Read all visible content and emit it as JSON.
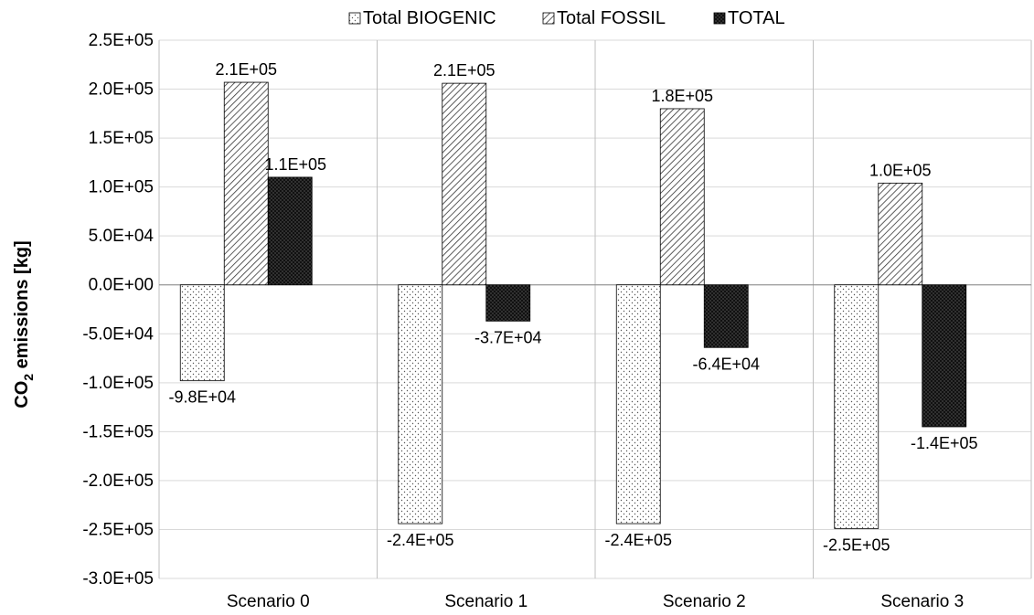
{
  "chart_data": {
    "type": "bar",
    "categories": [
      "Scenario 0",
      "Scenario 1",
      "Scenario 2",
      "Scenario 3"
    ],
    "series": [
      {
        "name": "Total BIOGENIC",
        "values": [
          -98000,
          -244000,
          -244000,
          -249000
        ],
        "labels": [
          "-9.8E+04",
          "-2.4E+05",
          "-2.4E+05",
          "-2.5E+05"
        ],
        "pattern": "dots"
      },
      {
        "name": "Total FOSSIL",
        "values": [
          207000,
          206000,
          180000,
          104000
        ],
        "labels": [
          "2.1E+05",
          "2.1E+05",
          "1.8E+05",
          "1.0E+05"
        ],
        "pattern": "diagonal-hatch"
      },
      {
        "name": "TOTAL",
        "values": [
          110000,
          -37000,
          -64000,
          -145000
        ],
        "labels": [
          "1.1E+05",
          "-3.7E+04",
          "-6.4E+04",
          "-1.4E+05"
        ],
        "pattern": "dense-dots"
      }
    ],
    "ylabel_main": "CO",
    "ylabel_sub": "2",
    "ylabel_rest": " emissions  [kg]",
    "ylim": [
      -300000,
      250000
    ],
    "yticks": [
      {
        "value": 250000,
        "label": "2.5E+05"
      },
      {
        "value": 200000,
        "label": "2.0E+05"
      },
      {
        "value": 150000,
        "label": "1.5E+05"
      },
      {
        "value": 100000,
        "label": "1.0E+05"
      },
      {
        "value": 50000,
        "label": "5.0E+04"
      },
      {
        "value": 0,
        "label": "0.0E+00"
      },
      {
        "value": -50000,
        "label": "-5.0E+04"
      },
      {
        "value": -100000,
        "label": "-1.0E+05"
      },
      {
        "value": -150000,
        "label": "-1.5E+05"
      },
      {
        "value": -200000,
        "label": "-2.0E+05"
      },
      {
        "value": -250000,
        "label": "-2.5E+05"
      },
      {
        "value": -300000,
        "label": "-3.0E+05"
      }
    ],
    "grid": true,
    "legend_position": "top",
    "colors": {
      "grid": "#d9d9d9",
      "bar_edge": "#000000",
      "total_fill": "#111111"
    }
  }
}
